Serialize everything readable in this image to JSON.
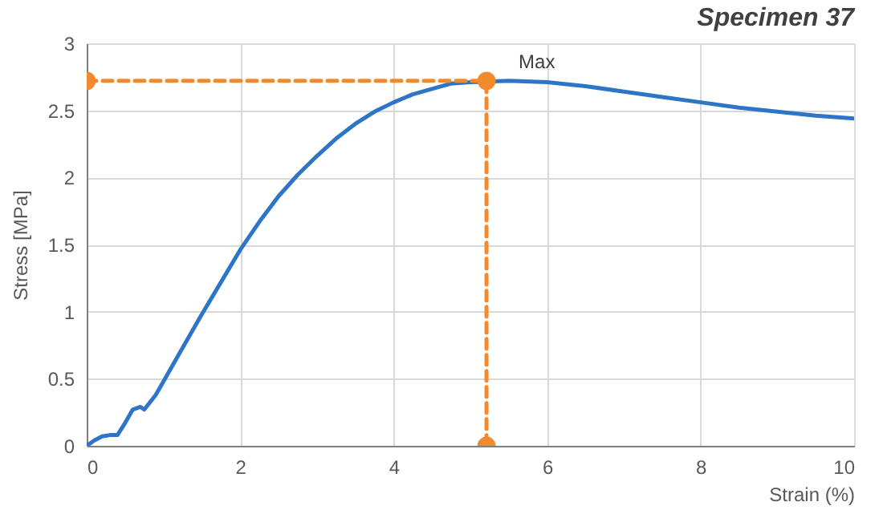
{
  "chart_data": {
    "type": "line",
    "title": "Specimen 37",
    "xlabel": "Strain (%)",
    "ylabel": "Stress [MPa]",
    "xlim": [
      0,
      10
    ],
    "ylim": [
      0,
      3
    ],
    "xticks": [
      0,
      2,
      4,
      6,
      8,
      10
    ],
    "yticks": [
      0,
      0.5,
      1,
      1.5,
      2,
      2.5,
      3
    ],
    "grid": true,
    "series": [
      {
        "color": "#2e75c8",
        "x": [
          0,
          0.1,
          0.2,
          0.3,
          0.4,
          0.5,
          0.6,
          0.7,
          0.75,
          0.9,
          1.0,
          1.25,
          1.5,
          1.75,
          2.0,
          2.25,
          2.5,
          2.75,
          3.0,
          3.25,
          3.5,
          3.75,
          4.0,
          4.25,
          4.5,
          4.75,
          5.0,
          5.5,
          6.0,
          6.5,
          7.0,
          7.5,
          8.0,
          8.5,
          9.0,
          9.5,
          10
        ],
        "values": [
          0,
          0.04,
          0.07,
          0.08,
          0.08,
          0.17,
          0.27,
          0.29,
          0.27,
          0.38,
          0.48,
          0.73,
          0.98,
          1.22,
          1.46,
          1.67,
          1.86,
          2.02,
          2.16,
          2.29,
          2.4,
          2.49,
          2.56,
          2.62,
          2.66,
          2.7,
          2.71,
          2.72,
          2.71,
          2.68,
          2.64,
          2.6,
          2.56,
          2.52,
          2.49,
          2.46,
          2.44
        ],
        "marker": "none",
        "line_style": "solid"
      },
      {
        "color": "#f08a2c",
        "x": [
          0,
          5.21,
          5.21
        ],
        "values": [
          2.72,
          2.72,
          0
        ],
        "marker": "circle",
        "line_style": "dashed"
      }
    ],
    "annotations": [
      {
        "text": "Max",
        "x": 5.21,
        "y": 2.72
      }
    ]
  }
}
